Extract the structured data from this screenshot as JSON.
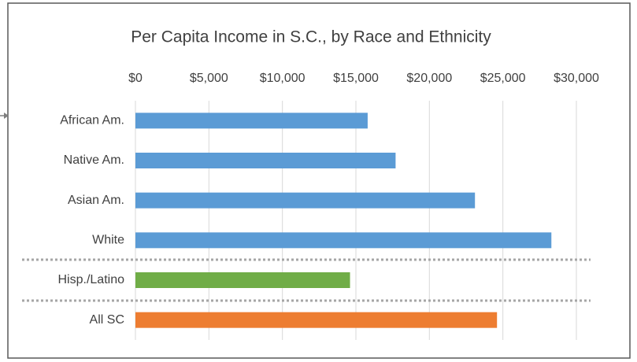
{
  "chart_data": {
    "type": "bar",
    "orientation": "horizontal",
    "title": "Per Capita Income in S.C., by Race and Ethnicity",
    "categories": [
      "African Am.",
      "Native Am.",
      "Asian Am.",
      "White",
      "Hisp./Latino",
      "All SC"
    ],
    "values": [
      15800,
      17700,
      23100,
      28300,
      14600,
      24600
    ],
    "colors": [
      "#5b9bd5",
      "#5b9bd5",
      "#5b9bd5",
      "#5b9bd5",
      "#70ad47",
      "#ed7d31"
    ],
    "xlim": [
      0,
      30000
    ],
    "xticks": [
      {
        "value": 0,
        "label": "$0"
      },
      {
        "value": 5000,
        "label": "$5,000"
      },
      {
        "value": 10000,
        "label": "$10,000"
      },
      {
        "value": 15000,
        "label": "$15,000"
      },
      {
        "value": 20000,
        "label": "$20,000"
      },
      {
        "value": 25000,
        "label": "$25,000"
      },
      {
        "value": 30000,
        "label": "$30,000"
      }
    ],
    "grid": true
  }
}
